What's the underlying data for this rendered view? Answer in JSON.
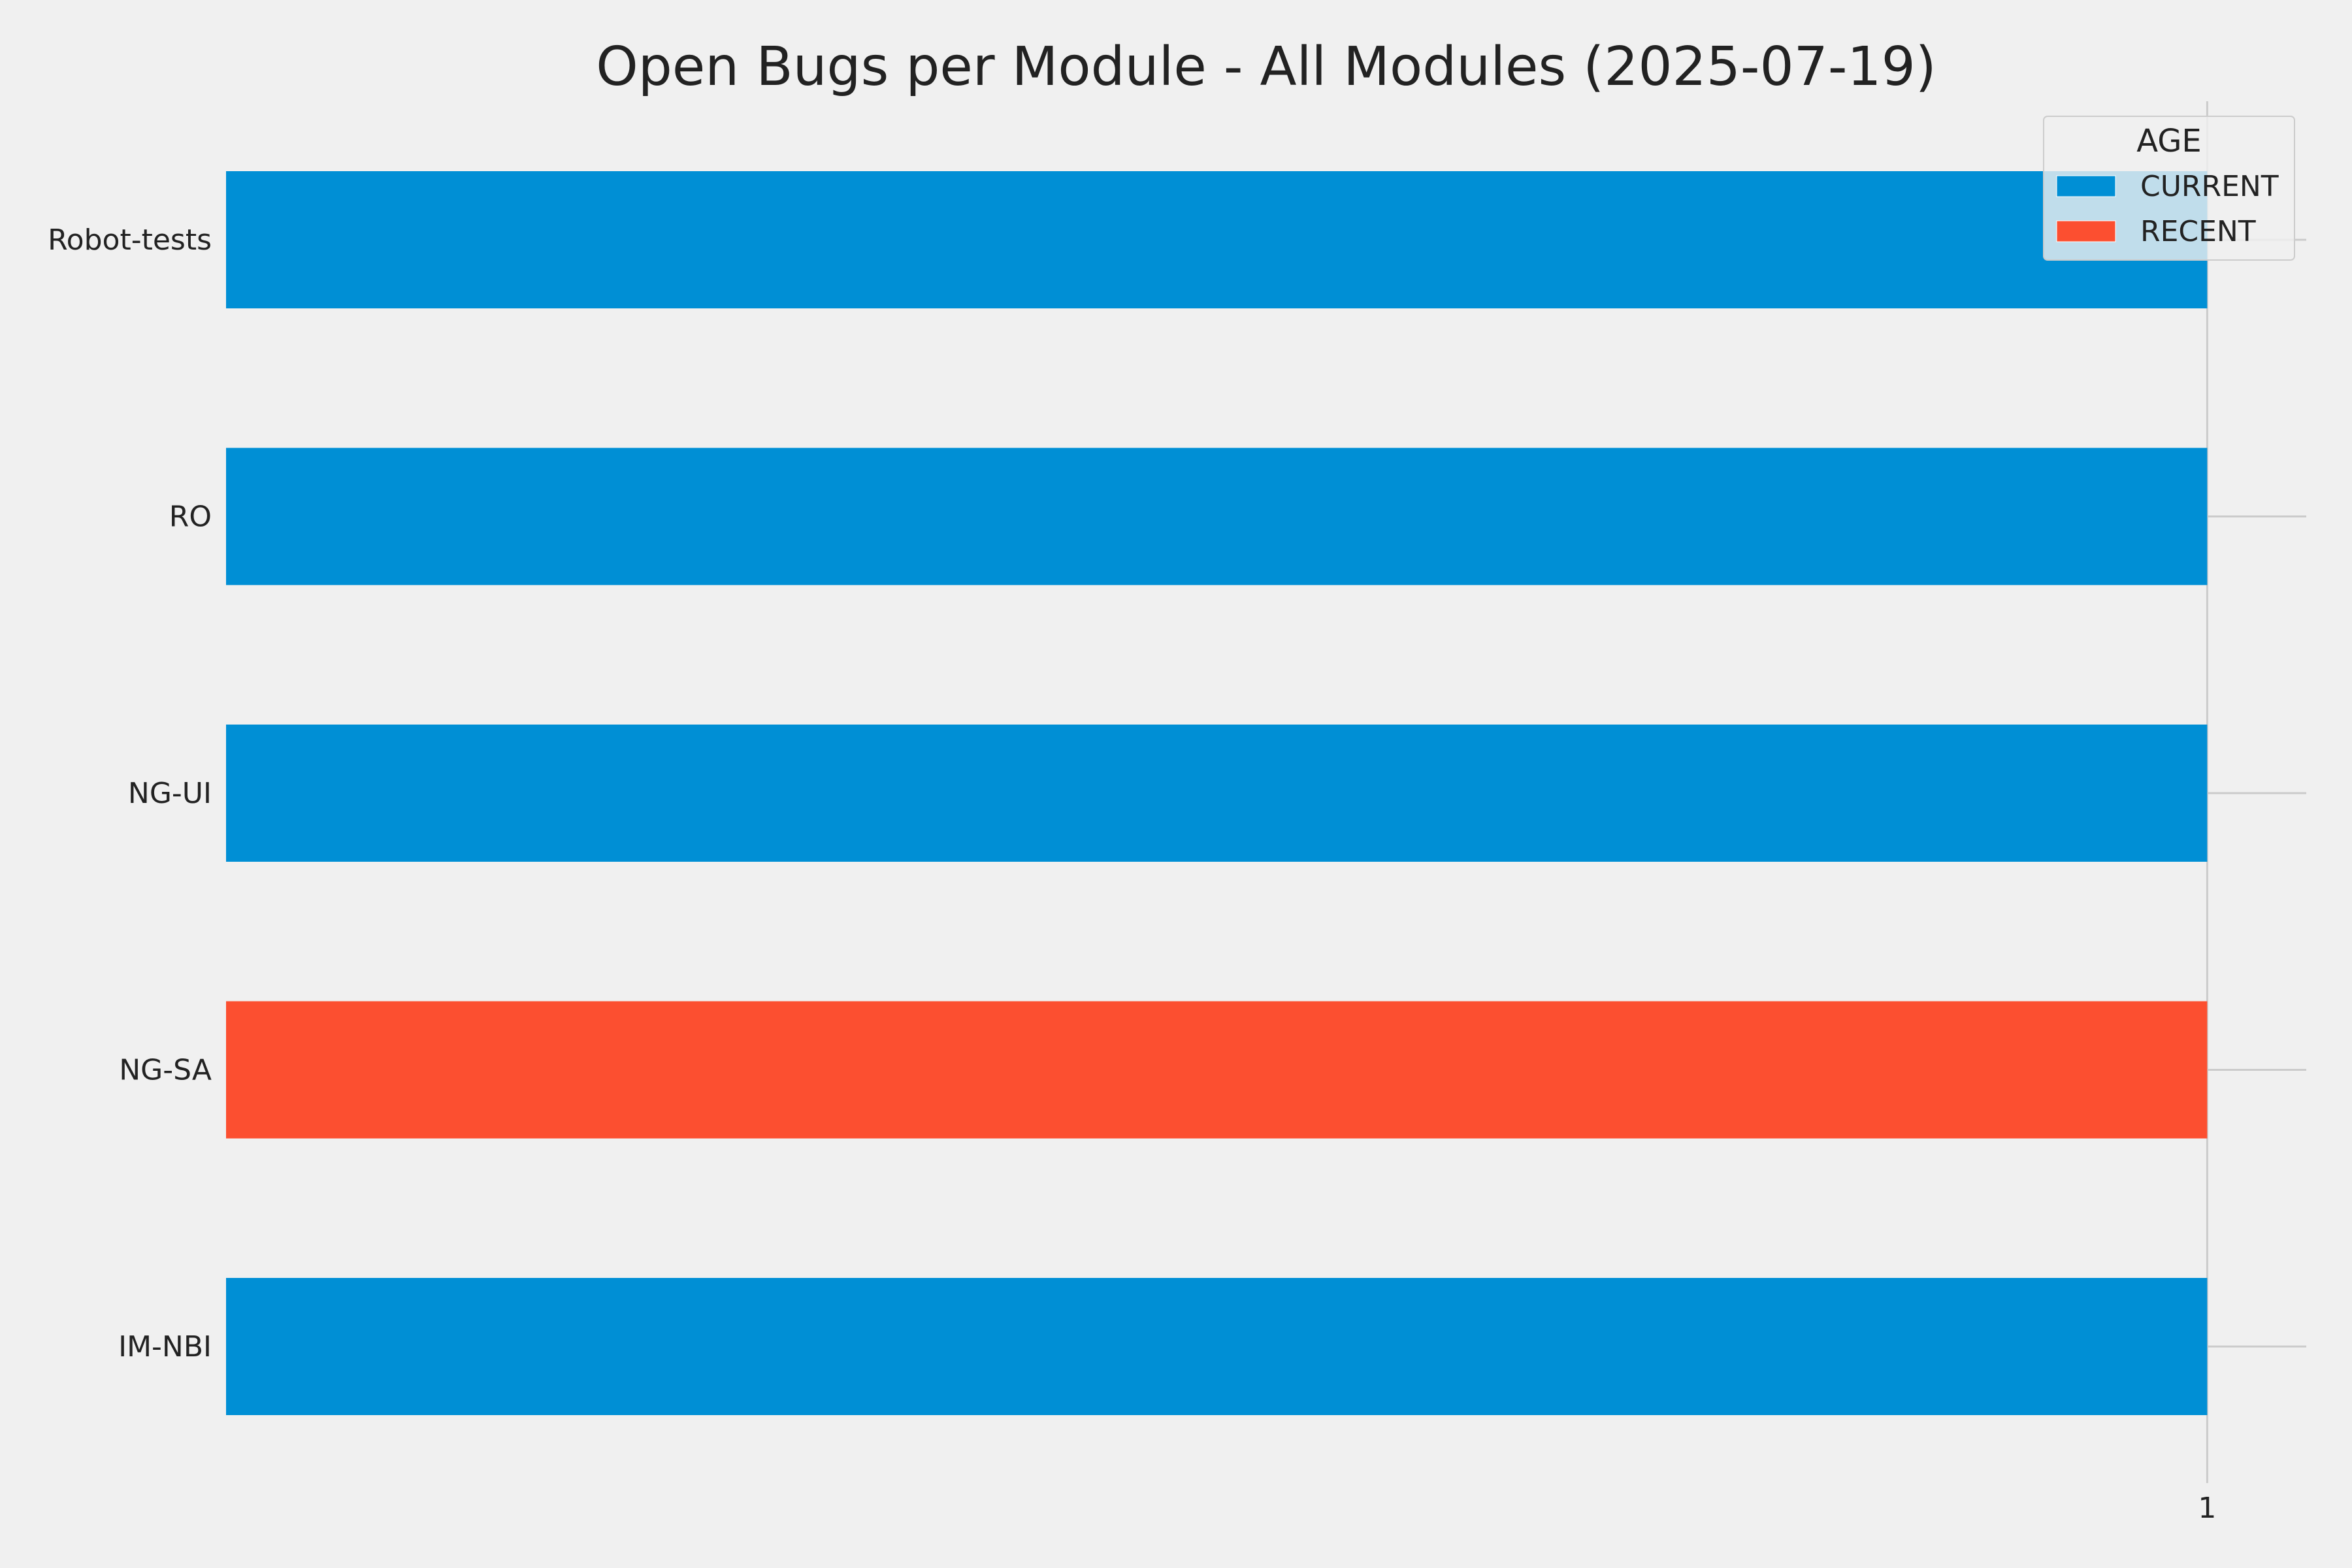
{
  "chart_data": {
    "type": "bar",
    "orientation": "horizontal",
    "stacked": true,
    "title": "Open Bugs per Module - All Modules (2025-07-19)",
    "xlabel": "",
    "ylabel": "",
    "categories": [
      "IM-NBI",
      "NG-SA",
      "NG-UI",
      "RO",
      "Robot-tests"
    ],
    "series": [
      {
        "name": "CURRENT",
        "color": "#008fd5",
        "values": [
          1,
          0,
          1,
          1,
          1
        ]
      },
      {
        "name": "RECENT",
        "color": "#fc4f30",
        "values": [
          0,
          1,
          0,
          0,
          0
        ]
      }
    ],
    "xlim": [
      0,
      1.05
    ],
    "xticks": [
      1
    ],
    "xtick_labels": [
      "1"
    ],
    "grid": true,
    "legend": {
      "title": "AGE",
      "placement": "upper right"
    }
  },
  "colors": {
    "background": "#f0f0f0",
    "grid": "#cbcbcb",
    "text": "#222222"
  }
}
